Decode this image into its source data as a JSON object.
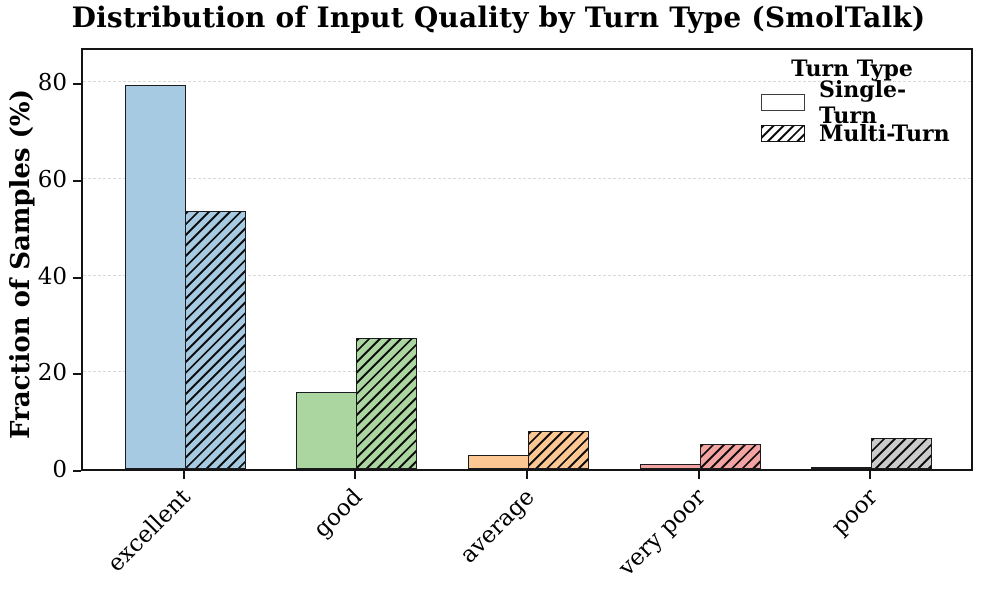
{
  "chart_data": {
    "type": "bar",
    "title": "Distribution of Input Quality by Turn Type (SmolTalk)",
    "xlabel": "",
    "ylabel": "Fraction of Samples (%)",
    "categories": [
      "excellent",
      "good",
      "average",
      "very poor",
      "poor"
    ],
    "series": [
      {
        "name": "Single-Turn",
        "style": "solid",
        "values": [
          79.4,
          15.9,
          3.0,
          1.1,
          0.4
        ]
      },
      {
        "name": "Multi-Turn",
        "style": "hatched",
        "values": [
          53.4,
          27.2,
          7.8,
          5.1,
          6.4
        ]
      }
    ],
    "category_colors": [
      "#a6cae1",
      "#abd6a0",
      "#fdc793",
      "#f2a3a2",
      "#cbcbcb"
    ],
    "hatch": {
      "pattern": "///",
      "color": "#0d0d0d",
      "applies_to": "Multi-Turn"
    },
    "yticks": [
      "0",
      "20",
      "40",
      "60",
      "80"
    ],
    "ytick_values": [
      0,
      20,
      40,
      60,
      80
    ],
    "ylim": [
      0,
      87.5
    ],
    "grid": {
      "axis": "y",
      "style": "dashed",
      "color": "#d9d9d9"
    },
    "legend": {
      "title": "Turn Type",
      "position": "upper-right",
      "entries": [
        {
          "label": "Single-Turn",
          "swatch": "solid-white"
        },
        {
          "label": "Multi-Turn",
          "swatch": "hatched"
        }
      ]
    }
  }
}
